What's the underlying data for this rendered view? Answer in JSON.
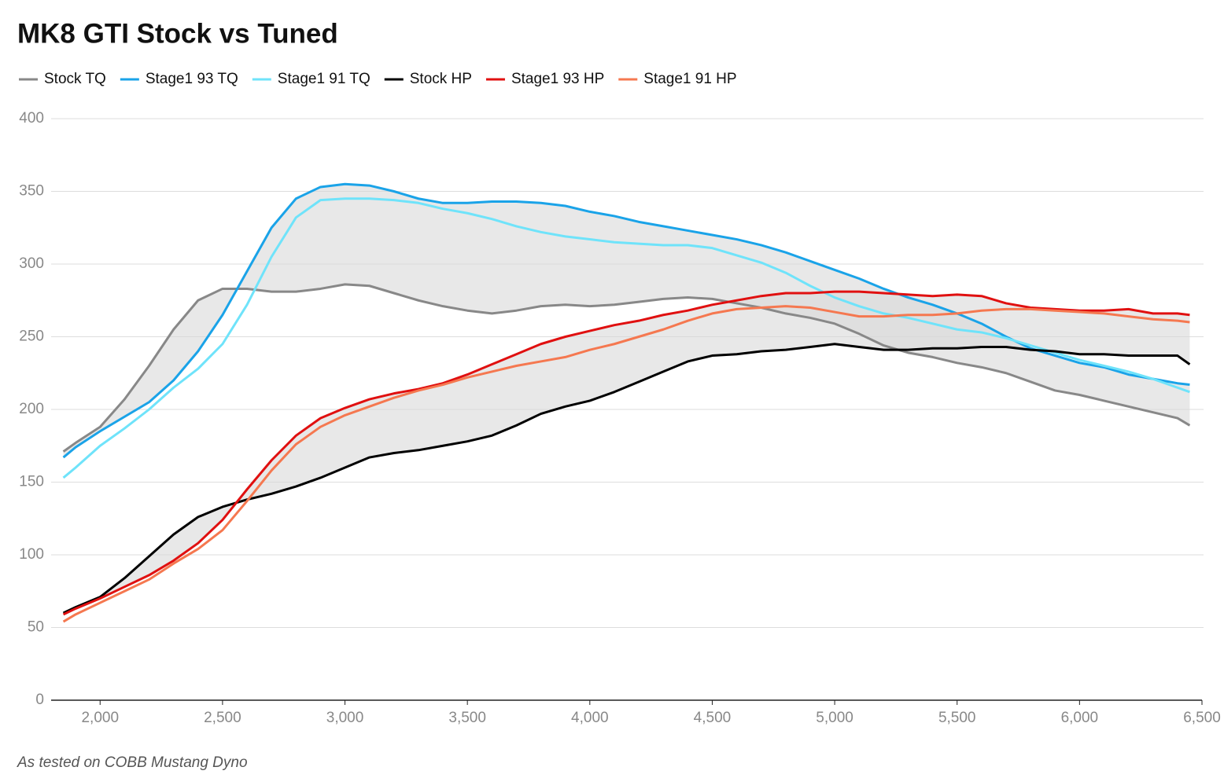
{
  "chart_data": {
    "type": "line",
    "title": "MK8 GTI Stock vs Tuned",
    "note": "As tested on COBB Mustang Dyno",
    "x": [
      1850,
      1900,
      2000,
      2100,
      2200,
      2300,
      2400,
      2500,
      2600,
      2700,
      2800,
      2900,
      3000,
      3100,
      3200,
      3300,
      3400,
      3500,
      3600,
      3700,
      3800,
      3900,
      4000,
      4100,
      4200,
      4300,
      4400,
      4500,
      4600,
      4700,
      4800,
      4900,
      5000,
      5100,
      5200,
      5300,
      5400,
      5500,
      5600,
      5700,
      5800,
      5900,
      6000,
      6100,
      6200,
      6300,
      6400,
      6450
    ],
    "series": [
      {
        "name": "Stock TQ",
        "color": "#888888",
        "values": [
          171,
          177,
          188,
          207,
          230,
          255,
          275,
          283,
          283,
          281,
          281,
          283,
          286,
          285,
          280,
          275,
          271,
          268,
          266,
          268,
          271,
          272,
          271,
          272,
          274,
          276,
          277,
          276,
          273,
          270,
          266,
          263,
          259,
          252,
          244,
          239,
          236,
          232,
          229,
          225,
          219,
          213,
          210,
          206,
          202,
          198,
          194,
          189
        ]
      },
      {
        "name": "Stage1 93 TQ",
        "color": "#1aa3e8",
        "values": [
          167,
          174,
          185,
          195,
          205,
          220,
          240,
          265,
          295,
          325,
          345,
          353,
          355,
          354,
          350,
          345,
          342,
          342,
          343,
          343,
          342,
          340,
          336,
          333,
          329,
          326,
          323,
          320,
          317,
          313,
          308,
          302,
          296,
          290,
          283,
          277,
          272,
          266,
          259,
          250,
          242,
          237,
          232,
          229,
          224,
          221,
          218,
          217
        ]
      },
      {
        "name": "Stage1 91 TQ",
        "color": "#6fe3fa",
        "values": [
          153,
          160,
          175,
          187,
          200,
          215,
          228,
          245,
          272,
          305,
          332,
          344,
          345,
          345,
          344,
          342,
          338,
          335,
          331,
          326,
          322,
          319,
          317,
          315,
          314,
          313,
          313,
          311,
          306,
          301,
          294,
          285,
          277,
          271,
          266,
          263,
          259,
          255,
          253,
          249,
          244,
          239,
          234,
          230,
          226,
          221,
          215,
          212
        ]
      },
      {
        "name": "Stock HP",
        "color": "#000000",
        "values": [
          60,
          64,
          71,
          84,
          99,
          114,
          126,
          133,
          138,
          142,
          147,
          153,
          160,
          167,
          170,
          172,
          175,
          178,
          182,
          189,
          197,
          202,
          206,
          212,
          219,
          226,
          233,
          237,
          238,
          240,
          241,
          243,
          245,
          243,
          241,
          241,
          242,
          242,
          243,
          243,
          241,
          240,
          238,
          238,
          237,
          237,
          237,
          231
        ]
      },
      {
        "name": "Stage1 93 HP",
        "color": "#e01010",
        "values": [
          59,
          63,
          70,
          78,
          86,
          96,
          108,
          124,
          145,
          165,
          182,
          194,
          201,
          207,
          211,
          214,
          218,
          224,
          231,
          238,
          245,
          250,
          254,
          258,
          261,
          265,
          268,
          272,
          275,
          278,
          280,
          280,
          281,
          281,
          280,
          279,
          278,
          279,
          278,
          273,
          270,
          269,
          268,
          268,
          269,
          266,
          266,
          265
        ]
      },
      {
        "name": "Stage1 91 HP",
        "color": "#f57850",
        "values": [
          54,
          59,
          67,
          75,
          83,
          94,
          104,
          117,
          137,
          158,
          176,
          188,
          196,
          202,
          208,
          213,
          217,
          222,
          226,
          230,
          233,
          236,
          241,
          245,
          250,
          255,
          261,
          266,
          269,
          270,
          271,
          270,
          267,
          264,
          264,
          265,
          265,
          266,
          268,
          269,
          269,
          268,
          267,
          266,
          264,
          262,
          261,
          260
        ]
      }
    ],
    "fill_between": [
      [
        0,
        1
      ],
      [
        3,
        4
      ]
    ],
    "fill_color": "#d9d9d9",
    "xlim": [
      1800,
      6500
    ],
    "xticks": [
      {
        "value": 2000,
        "label": "2,000"
      },
      {
        "value": 2500,
        "label": "2,500"
      },
      {
        "value": 3000,
        "label": "3,000"
      },
      {
        "value": 3500,
        "label": "3,500"
      },
      {
        "value": 4000,
        "label": "4,000"
      },
      {
        "value": 4500,
        "label": "4,500"
      },
      {
        "value": 5000,
        "label": "5,000"
      },
      {
        "value": 5500,
        "label": "5,500"
      },
      {
        "value": 6000,
        "label": "6,000"
      },
      {
        "value": 6500,
        "label": "6,500"
      }
    ],
    "ylim": [
      0,
      400
    ],
    "yticks": [
      0,
      50,
      100,
      150,
      200,
      250,
      300,
      350,
      400
    ],
    "grid": true
  }
}
